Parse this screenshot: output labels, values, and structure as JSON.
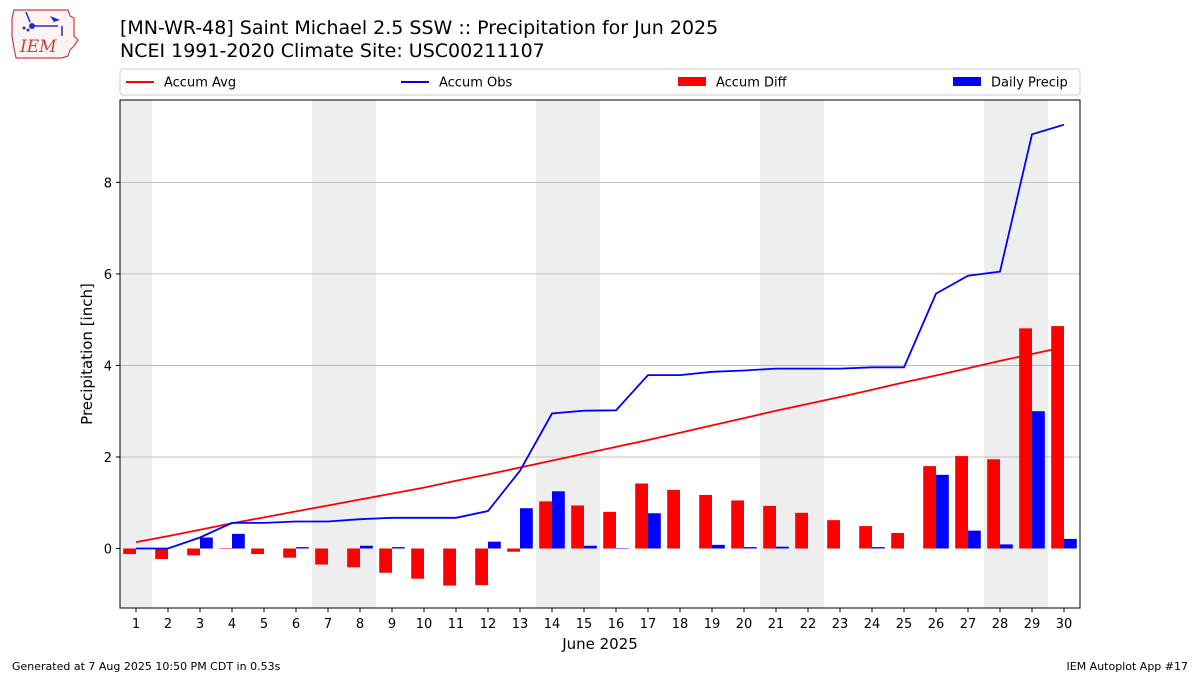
{
  "header": {
    "title": "[MN-WR-48] Saint Michael 2.5 SSW :: Precipitation for Jun 2025",
    "subtitle": "NCEI 1991-2020 Climate Site: USC00211107",
    "logo_text": "IEM"
  },
  "footer": {
    "generated": "Generated at 7 Aug 2025 10:50 PM CDT in 0.53s",
    "app": "IEM Autoplot App #17"
  },
  "colors": {
    "accum_avg": "#ff0000",
    "accum_obs": "#0000ff",
    "accum_diff": "#ff0000",
    "daily_precip": "#0000ff",
    "weekend_band": "#eeeeee",
    "grid": "#b0b0b0"
  },
  "chart_data": {
    "type": "bar",
    "xlabel": "June 2025",
    "ylabel": "Precipitation [inch]",
    "xlim": [
      0.5,
      30.5
    ],
    "ylim": [
      -1.3,
      9.8
    ],
    "yticks": [
      0,
      2,
      4,
      6,
      8
    ],
    "grid": "horizontal",
    "legend_position": "top",
    "categories": [
      "1",
      "2",
      "3",
      "4",
      "5",
      "6",
      "7",
      "8",
      "9",
      "10",
      "11",
      "12",
      "13",
      "14",
      "15",
      "16",
      "17",
      "18",
      "19",
      "20",
      "21",
      "22",
      "23",
      "24",
      "25",
      "26",
      "27",
      "28",
      "29",
      "30"
    ],
    "shaded_days": [
      [
        0.5,
        1.5
      ],
      [
        6.5,
        8.5
      ],
      [
        13.5,
        15.5
      ],
      [
        20.5,
        22.5
      ],
      [
        27.5,
        29.5
      ]
    ],
    "series": [
      {
        "name": "Accum Avg",
        "kind": "line",
        "values": [
          0.14,
          0.27,
          0.41,
          0.55,
          0.68,
          0.81,
          0.94,
          1.07,
          1.2,
          1.33,
          1.48,
          1.62,
          1.77,
          1.92,
          2.07,
          2.22,
          2.37,
          2.53,
          2.69,
          2.85,
          3.01,
          3.16,
          3.31,
          3.47,
          3.63,
          3.78,
          3.94,
          4.1,
          4.25,
          4.4
        ]
      },
      {
        "name": "Accum Obs",
        "kind": "line",
        "values": [
          0.0,
          0.0,
          0.24,
          0.56,
          0.56,
          0.59,
          0.59,
          0.64,
          0.67,
          0.67,
          0.67,
          0.82,
          1.7,
          2.95,
          3.01,
          3.02,
          3.79,
          3.79,
          3.86,
          3.89,
          3.93,
          3.93,
          3.93,
          3.96,
          3.96,
          5.57,
          5.96,
          6.05,
          9.05,
          9.26
        ]
      },
      {
        "name": "Accum Diff",
        "kind": "bar",
        "values": [
          -0.12,
          -0.23,
          -0.15,
          -0.01,
          -0.12,
          -0.2,
          -0.35,
          -0.41,
          -0.53,
          -0.66,
          -0.81,
          -0.8,
          -0.07,
          1.03,
          0.94,
          0.8,
          1.42,
          1.28,
          1.17,
          1.05,
          0.93,
          0.78,
          0.62,
          0.49,
          0.34,
          1.8,
          2.02,
          1.95,
          4.81,
          4.86
        ]
      },
      {
        "name": "Daily Precip",
        "kind": "bar",
        "values": [
          0.0,
          0.0,
          0.24,
          0.32,
          0.0,
          0.03,
          0.0,
          0.06,
          0.03,
          0.0,
          0.0,
          0.15,
          0.88,
          1.25,
          0.06,
          0.01,
          0.77,
          0.0,
          0.08,
          0.03,
          0.04,
          0.0,
          0.0,
          0.03,
          0.0,
          1.61,
          0.39,
          0.09,
          3.0,
          0.21
        ]
      }
    ]
  }
}
